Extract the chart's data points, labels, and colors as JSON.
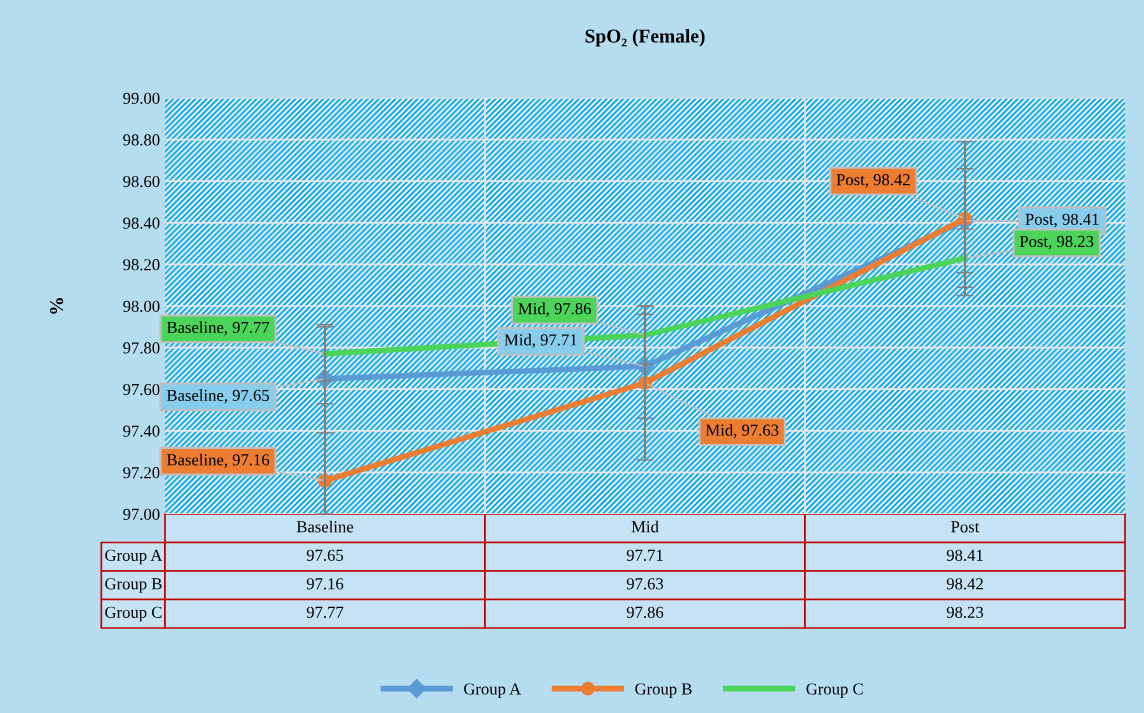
{
  "chart_data": {
    "type": "line",
    "title": "SpO₂ (Female)",
    "ylabel": "%",
    "categories": [
      "Baseline",
      "Mid",
      "Post"
    ],
    "series": [
      {
        "name": "Group A",
        "color": "#5b9bd5",
        "marker": "diamond",
        "values": [
          97.65,
          97.71,
          98.41
        ],
        "errors": [
          0.26,
          0.25,
          0.25
        ]
      },
      {
        "name": "Group B",
        "color": "#ed7d31",
        "marker": "circle",
        "values": [
          97.16,
          97.63,
          98.42
        ],
        "errors": [
          [
            97.0,
            97.53
          ],
          0.37,
          0.37
        ]
      },
      {
        "name": "Group C",
        "color": "#4cd45a",
        "marker": "none",
        "values": [
          97.77,
          97.86,
          98.23
        ],
        "errors": [
          0.13,
          0.14,
          0.14
        ]
      }
    ],
    "annotations": [
      {
        "text": "Baseline, 97.65",
        "x": "Baseline",
        "y": 97.65
      },
      {
        "text": "Mid, 97.71",
        "x": "Mid",
        "y": 97.71
      },
      {
        "text": "Post, 98.41",
        "x": "Post",
        "y": 98.41
      },
      {
        "text": "Baseline, 97.16",
        "x": "Baseline",
        "y": 97.16
      },
      {
        "text": "Mid, 97.63",
        "x": "Mid",
        "y": 97.63
      },
      {
        "text": "Post, 98.42",
        "x": "Post",
        "y": 98.42
      },
      {
        "text": "Baseline, 97.77",
        "x": "Baseline",
        "y": 97.77
      },
      {
        "text": "Mid, 97.86",
        "x": "Mid",
        "y": 97.86
      },
      {
        "text": "Post, 98.23",
        "x": "Post",
        "y": 98.23
      }
    ],
    "ylim": [
      97,
      99
    ],
    "yticks": [
      {
        "value": 97,
        "label": "97.00"
      },
      {
        "value": 97.2,
        "label": "97.20"
      },
      {
        "value": 97.4,
        "label": "97.40"
      },
      {
        "value": 97.6,
        "label": "97.60"
      },
      {
        "value": 97.8,
        "label": "97.80"
      },
      {
        "value": 98,
        "label": "98.00"
      },
      {
        "value": 98.2,
        "label": "98.20"
      },
      {
        "value": 98.4,
        "label": "98.40"
      },
      {
        "value": 98.6,
        "label": "98.60"
      },
      {
        "value": 98.8,
        "label": "98.80"
      },
      {
        "value": 99,
        "label": "99.00"
      }
    ],
    "grid": true,
    "legend": "bottom",
    "data_labels": true,
    "line_style": "solid"
  }
}
